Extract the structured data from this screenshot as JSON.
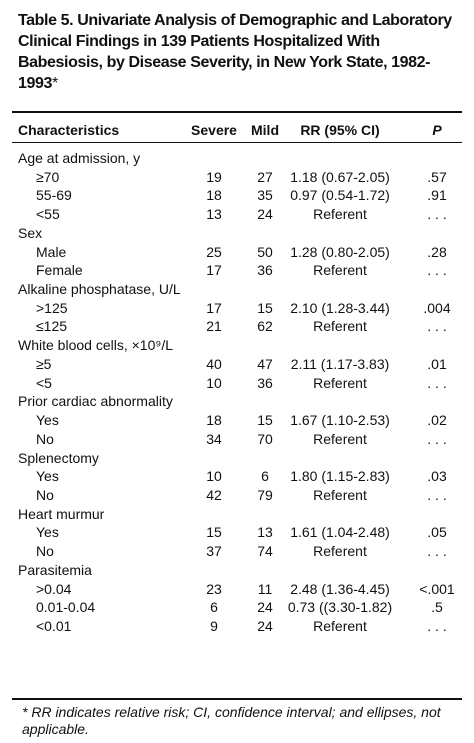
{
  "title": "Table 5. Univariate Analysis of Demographic and Laboratory Clinical Findings in 139 Patients Hospitalized With Babesiosis, by Disease Severity, in New York State, 1982-1993",
  "title_mark": "*",
  "table": {
    "header": [
      "Characteristics",
      "Severe",
      "Mild",
      "RR (95% CI)",
      "P"
    ],
    "groups": [
      {
        "label": "Age at admission, y",
        "rows": [
          [
            "≥70",
            19,
            27,
            "1.18 (0.67-2.05)",
            ".57"
          ],
          [
            "55-69",
            18,
            35,
            "0.97 (0.54-1.72)",
            ".91"
          ],
          [
            "<55",
            13,
            24,
            "Referent",
            ". . ."
          ]
        ]
      },
      {
        "label": "Sex",
        "rows": [
          [
            "Male",
            25,
            50,
            "1.28 (0.80-2.05)",
            ".28"
          ],
          [
            "Female",
            17,
            36,
            "Referent",
            ". . ."
          ]
        ]
      },
      {
        "label": "Alkaline phosphatase, U/L",
        "rows": [
          [
            ">125",
            17,
            15,
            "2.10 (1.28-3.44)",
            ".004"
          ],
          [
            "≤125",
            21,
            62,
            "Referent",
            ". . ."
          ]
        ]
      },
      {
        "label": "White blood cells, ×10⁹/L",
        "rows": [
          [
            "≥5",
            40,
            47,
            "2.11 (1.17-3.83)",
            ".01"
          ],
          [
            "<5",
            10,
            36,
            "Referent",
            ". . ."
          ]
        ]
      },
      {
        "label": "Prior cardiac abnormality",
        "rows": [
          [
            "Yes",
            18,
            15,
            "1.67 (1.10-2.53)",
            ".02"
          ],
          [
            "No",
            34,
            70,
            "Referent",
            ". . ."
          ]
        ]
      },
      {
        "label": "Splenectomy",
        "rows": [
          [
            "Yes",
            10,
            6,
            "1.80 (1.15-2.83)",
            ".03"
          ],
          [
            "No",
            42,
            79,
            "Referent",
            ". . ."
          ]
        ]
      },
      {
        "label": "Heart murmur",
        "rows": [
          [
            "Yes",
            15,
            13,
            "1.61 (1.04-2.48)",
            ".05"
          ],
          [
            "No",
            37,
            74,
            "Referent",
            ". . ."
          ]
        ]
      },
      {
        "label": "Parasitemia",
        "rows": [
          [
            ">0.04",
            23,
            11,
            "2.48 (1.36-4.45)",
            "<.001"
          ],
          [
            "0.01-0.04",
            6,
            24,
            "0.73 ((3.30-1.82)",
            ".5"
          ],
          [
            "<0.01",
            9,
            24,
            "Referent",
            ". . ."
          ]
        ]
      }
    ]
  },
  "footnote": "* RR indicates relative risk; CI, confidence interval; and ellipses, not applicable."
}
